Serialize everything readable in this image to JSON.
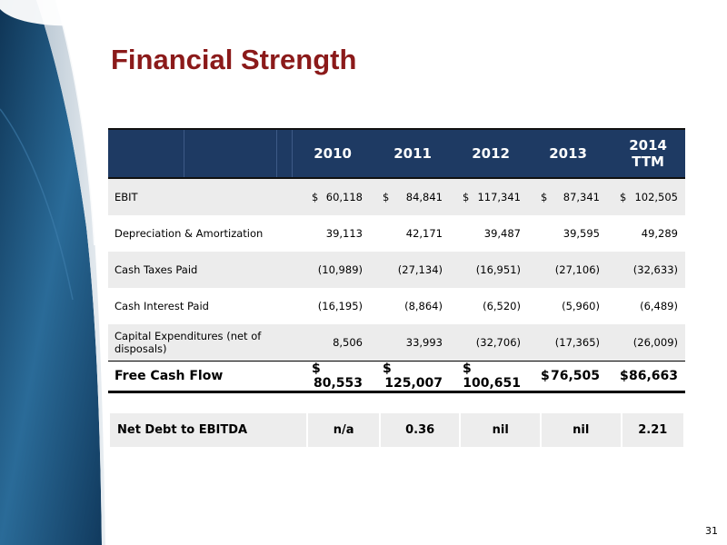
{
  "title": "Financial Strength",
  "page_number": "31",
  "colors": {
    "title": "#8b1a1a",
    "header_bg": "#1e3a63",
    "row_shade": "#ececec",
    "deco_blue": "#1d4f7a"
  },
  "table": {
    "years": [
      "2010",
      "2011",
      "2012",
      "2013",
      "2014"
    ],
    "last_year_sub": "TTM",
    "rows": [
      {
        "label": "EBIT",
        "currency": "$",
        "values": [
          "60,118",
          "84,841",
          "117,341",
          "87,341",
          "102,505"
        ]
      },
      {
        "label": "Depreciation & Amortization",
        "values": [
          "39,113",
          "42,171",
          "39,487",
          "39,595",
          "49,289"
        ]
      },
      {
        "label": "Cash Taxes Paid",
        "values": [
          "(10,989)",
          "(27,134)",
          "(16,951)",
          "(27,106)",
          "(32,633)"
        ]
      },
      {
        "label": "Cash Interest Paid",
        "values": [
          "(16,195)",
          "(8,864)",
          "(6,520)",
          "(5,960)",
          "(6,489)"
        ]
      },
      {
        "label": "Capital Expenditures (net of disposals)",
        "values": [
          "8,506",
          "33,993",
          "(32,706)",
          "(17,365)",
          "(26,009)"
        ]
      }
    ],
    "total": {
      "label": "Free Cash Flow",
      "currency": "$",
      "values": [
        "80,553",
        "125,007",
        "100,651",
        "76,505",
        "86,663"
      ]
    }
  },
  "net_debt": {
    "label": "Net Debt to EBITDA",
    "values": [
      "n/a",
      "0.36",
      "nil",
      "nil",
      "2.21"
    ]
  }
}
